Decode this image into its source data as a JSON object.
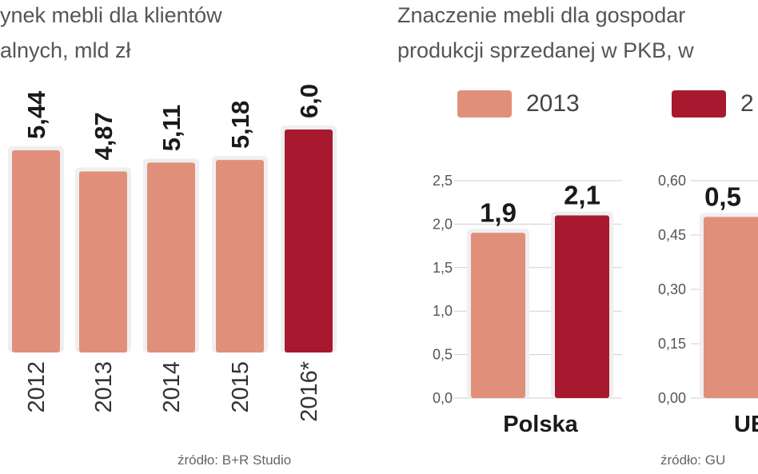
{
  "left_chart": {
    "title_line1": "ynek mebli dla klientów",
    "title_line2": "alnych, mld zł",
    "source": "źródło: B+R Studio",
    "chart_data": {
      "type": "bar",
      "categories": [
        "2012",
        "2013",
        "2014",
        "2015",
        "2016*"
      ],
      "values": [
        5.44,
        4.87,
        5.11,
        5.18,
        6.0
      ],
      "value_labels": [
        "5,44",
        "4,87",
        "5,11",
        "5,18",
        "6,0"
      ],
      "highlight_index": 4,
      "ylim": [
        0,
        6.0
      ]
    }
  },
  "right_chart": {
    "title_line1": "Znaczenie mebli dla gospodar",
    "title_line2": "produkcji sprzedanej w PKB, w",
    "source": "źródło: GU",
    "legend": [
      {
        "label": "2013",
        "color": "#e0907a"
      },
      {
        "label": "2",
        "color": "#a8182f"
      }
    ],
    "chart_data": [
      {
        "type": "bar",
        "group": "Polska",
        "series": [
          {
            "name": "2013",
            "values": [
              1.9
            ]
          },
          {
            "name": "2",
            "values": [
              2.1
            ]
          }
        ],
        "value_labels": [
          "1,9",
          "2,1"
        ],
        "yticks": [
          "0,0",
          "0,5",
          "1,0",
          "1,5",
          "2,0",
          "2,5"
        ],
        "ylim": [
          0,
          2.5
        ]
      },
      {
        "type": "bar",
        "group": "UE",
        "series": [
          {
            "name": "2013",
            "values": [
              0.5
            ]
          }
        ],
        "value_labels": [
          "0,5"
        ],
        "yticks": [
          "0,00",
          "0,15",
          "0,30",
          "0,45",
          "0,60"
        ],
        "ylim": [
          0,
          0.6
        ]
      }
    ]
  },
  "colors": {
    "light_bar": "#e0907a",
    "dark_bar": "#a8182f",
    "panel_bg": "#efefef"
  }
}
